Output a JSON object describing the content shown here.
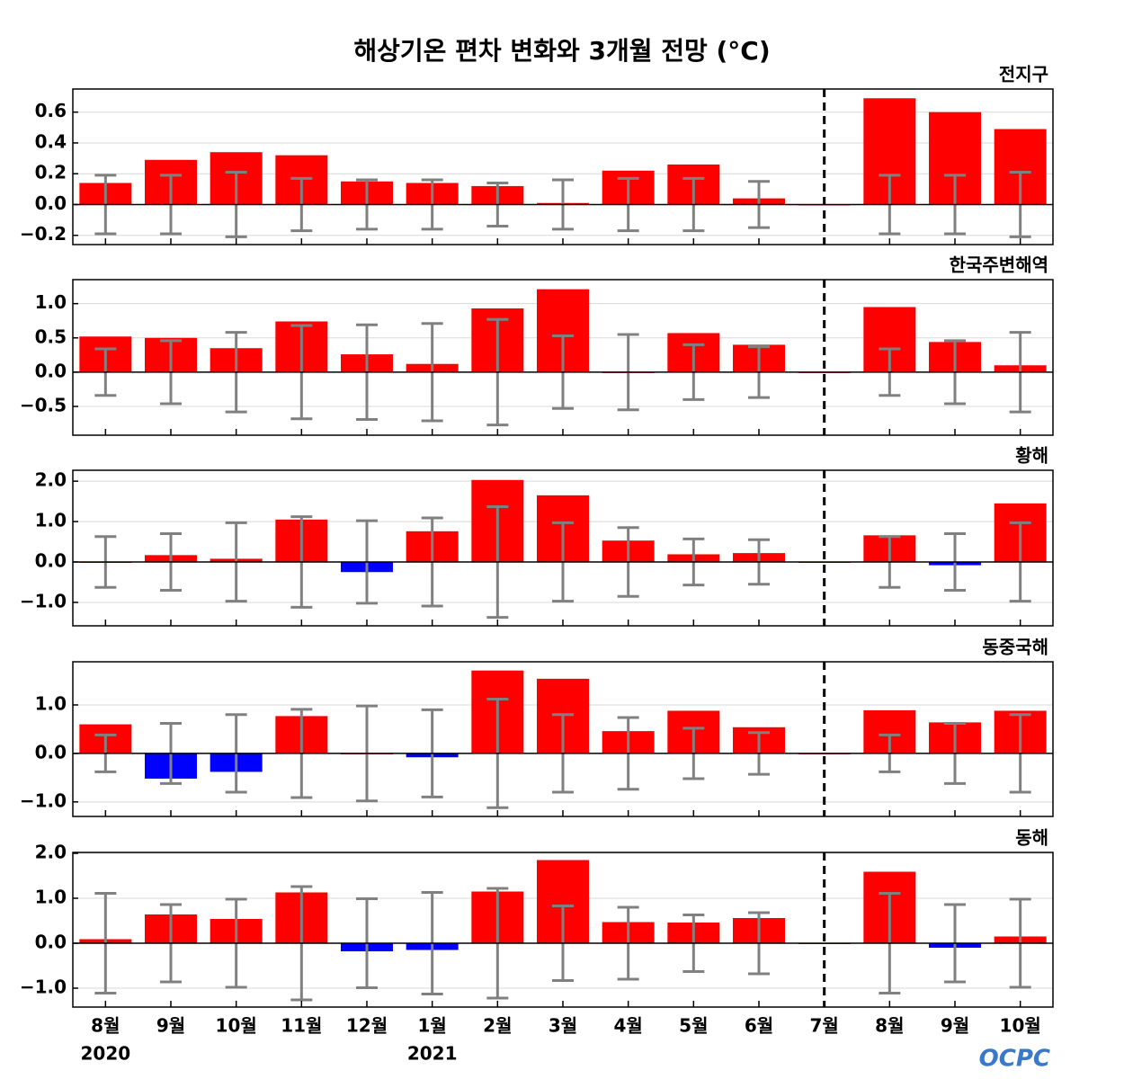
{
  "title": "해상기온 편차 변화와 3개월 전망 (°C)",
  "categories": [
    "8월",
    "9월",
    "10월",
    "11월",
    "12월",
    "1월",
    "2월",
    "3월",
    "4월",
    "5월",
    "6월",
    "7월",
    "8월",
    "9월",
    "10월"
  ],
  "year_labels": [
    {
      "index": 0,
      "label": "2020"
    },
    {
      "index": 5,
      "label": "2021"
    }
  ],
  "divider_index": 11,
  "logo": "OCPC",
  "positive_color": "#ff0000",
  "negative_color": "#0000ff",
  "error_color": "#808080",
  "chart_data": [
    {
      "type": "bar",
      "title": "전지구",
      "values": [
        0.14,
        0.29,
        0.34,
        0.32,
        0.15,
        0.14,
        0.12,
        0.01,
        0.22,
        0.26,
        0.04,
        0,
        0.69,
        0.6,
        0.49
      ],
      "errors": [
        0.19,
        0.19,
        0.21,
        0.17,
        0.16,
        0.16,
        0.14,
        0.16,
        0.17,
        0.17,
        0.15,
        null,
        0.19,
        0.19,
        0.21
      ],
      "ylim": [
        -0.26,
        0.75
      ],
      "yticks": [
        {
          "value": -0.2,
          "label": "−0.2"
        },
        {
          "value": 0,
          "label": "0.0"
        },
        0.2,
        0.4,
        0.6
      ],
      "grid": true
    },
    {
      "type": "bar",
      "title": "한국주변해역",
      "values": [
        0.52,
        0.5,
        0.35,
        0.74,
        0.26,
        0.12,
        0.93,
        1.21,
        0.0,
        0.57,
        0.4,
        0,
        0.95,
        0.44,
        0.1
      ],
      "errors": [
        0.34,
        0.46,
        0.58,
        0.68,
        0.69,
        0.71,
        0.77,
        0.53,
        0.55,
        0.4,
        0.37,
        null,
        0.34,
        0.46,
        0.58
      ],
      "ylim": [
        -0.92,
        1.35
      ],
      "yticks": [
        {
          "value": -0.5,
          "label": "−0.5"
        },
        {
          "value": 0,
          "label": "0.0"
        },
        0.5,
        {
          "value": 1,
          "label": "1.0"
        }
      ],
      "grid": true
    },
    {
      "type": "bar",
      "title": "황해",
      "values": [
        0.0,
        0.17,
        0.08,
        1.05,
        -0.25,
        0.76,
        2.03,
        1.65,
        0.53,
        0.19,
        0.22,
        0,
        0.66,
        -0.08,
        1.45
      ],
      "errors": [
        0.63,
        0.7,
        0.97,
        1.12,
        1.02,
        1.09,
        1.37,
        0.97,
        0.85,
        0.57,
        0.55,
        null,
        0.63,
        0.7,
        0.97
      ],
      "ylim": [
        -1.58,
        2.27
      ],
      "yticks": [
        {
          "value": -1,
          "label": "−1.0"
        },
        {
          "value": 0,
          "label": "0.0"
        },
        {
          "value": 1,
          "label": "1.0"
        },
        {
          "value": 2,
          "label": "2.0"
        }
      ],
      "grid": true
    },
    {
      "type": "bar",
      "title": "동중국해",
      "values": [
        0.6,
        -0.52,
        -0.38,
        0.77,
        0.0,
        -0.08,
        1.71,
        1.54,
        0.46,
        0.88,
        0.54,
        0,
        0.89,
        0.64,
        0.88
      ],
      "errors": [
        0.38,
        0.62,
        0.8,
        0.91,
        0.98,
        0.9,
        1.12,
        0.8,
        0.74,
        0.52,
        0.43,
        null,
        0.38,
        0.62,
        0.8
      ],
      "ylim": [
        -1.3,
        1.89
      ],
      "yticks": [
        {
          "value": -1,
          "label": "−1.0"
        },
        {
          "value": 0,
          "label": "0.0"
        },
        {
          "value": 1,
          "label": "1.0"
        }
      ],
      "grid": true
    },
    {
      "type": "bar",
      "title": "동해",
      "values": [
        0.09,
        0.64,
        0.54,
        1.13,
        -0.18,
        -0.15,
        1.15,
        1.85,
        0.47,
        0.46,
        0.56,
        0,
        1.59,
        -0.1,
        0.15
      ],
      "errors": [
        1.11,
        0.86,
        0.98,
        1.26,
        0.99,
        1.13,
        1.22,
        0.83,
        0.8,
        0.63,
        0.68,
        null,
        1.11,
        0.86,
        0.98
      ],
      "ylim": [
        -1.42,
        2.02
      ],
      "yticks": [
        {
          "value": -1,
          "label": "−1.0"
        },
        {
          "value": 0,
          "label": "0.0"
        },
        {
          "value": 1,
          "label": "1.0"
        },
        {
          "value": 2,
          "label": "2.0"
        }
      ],
      "grid": true
    }
  ]
}
